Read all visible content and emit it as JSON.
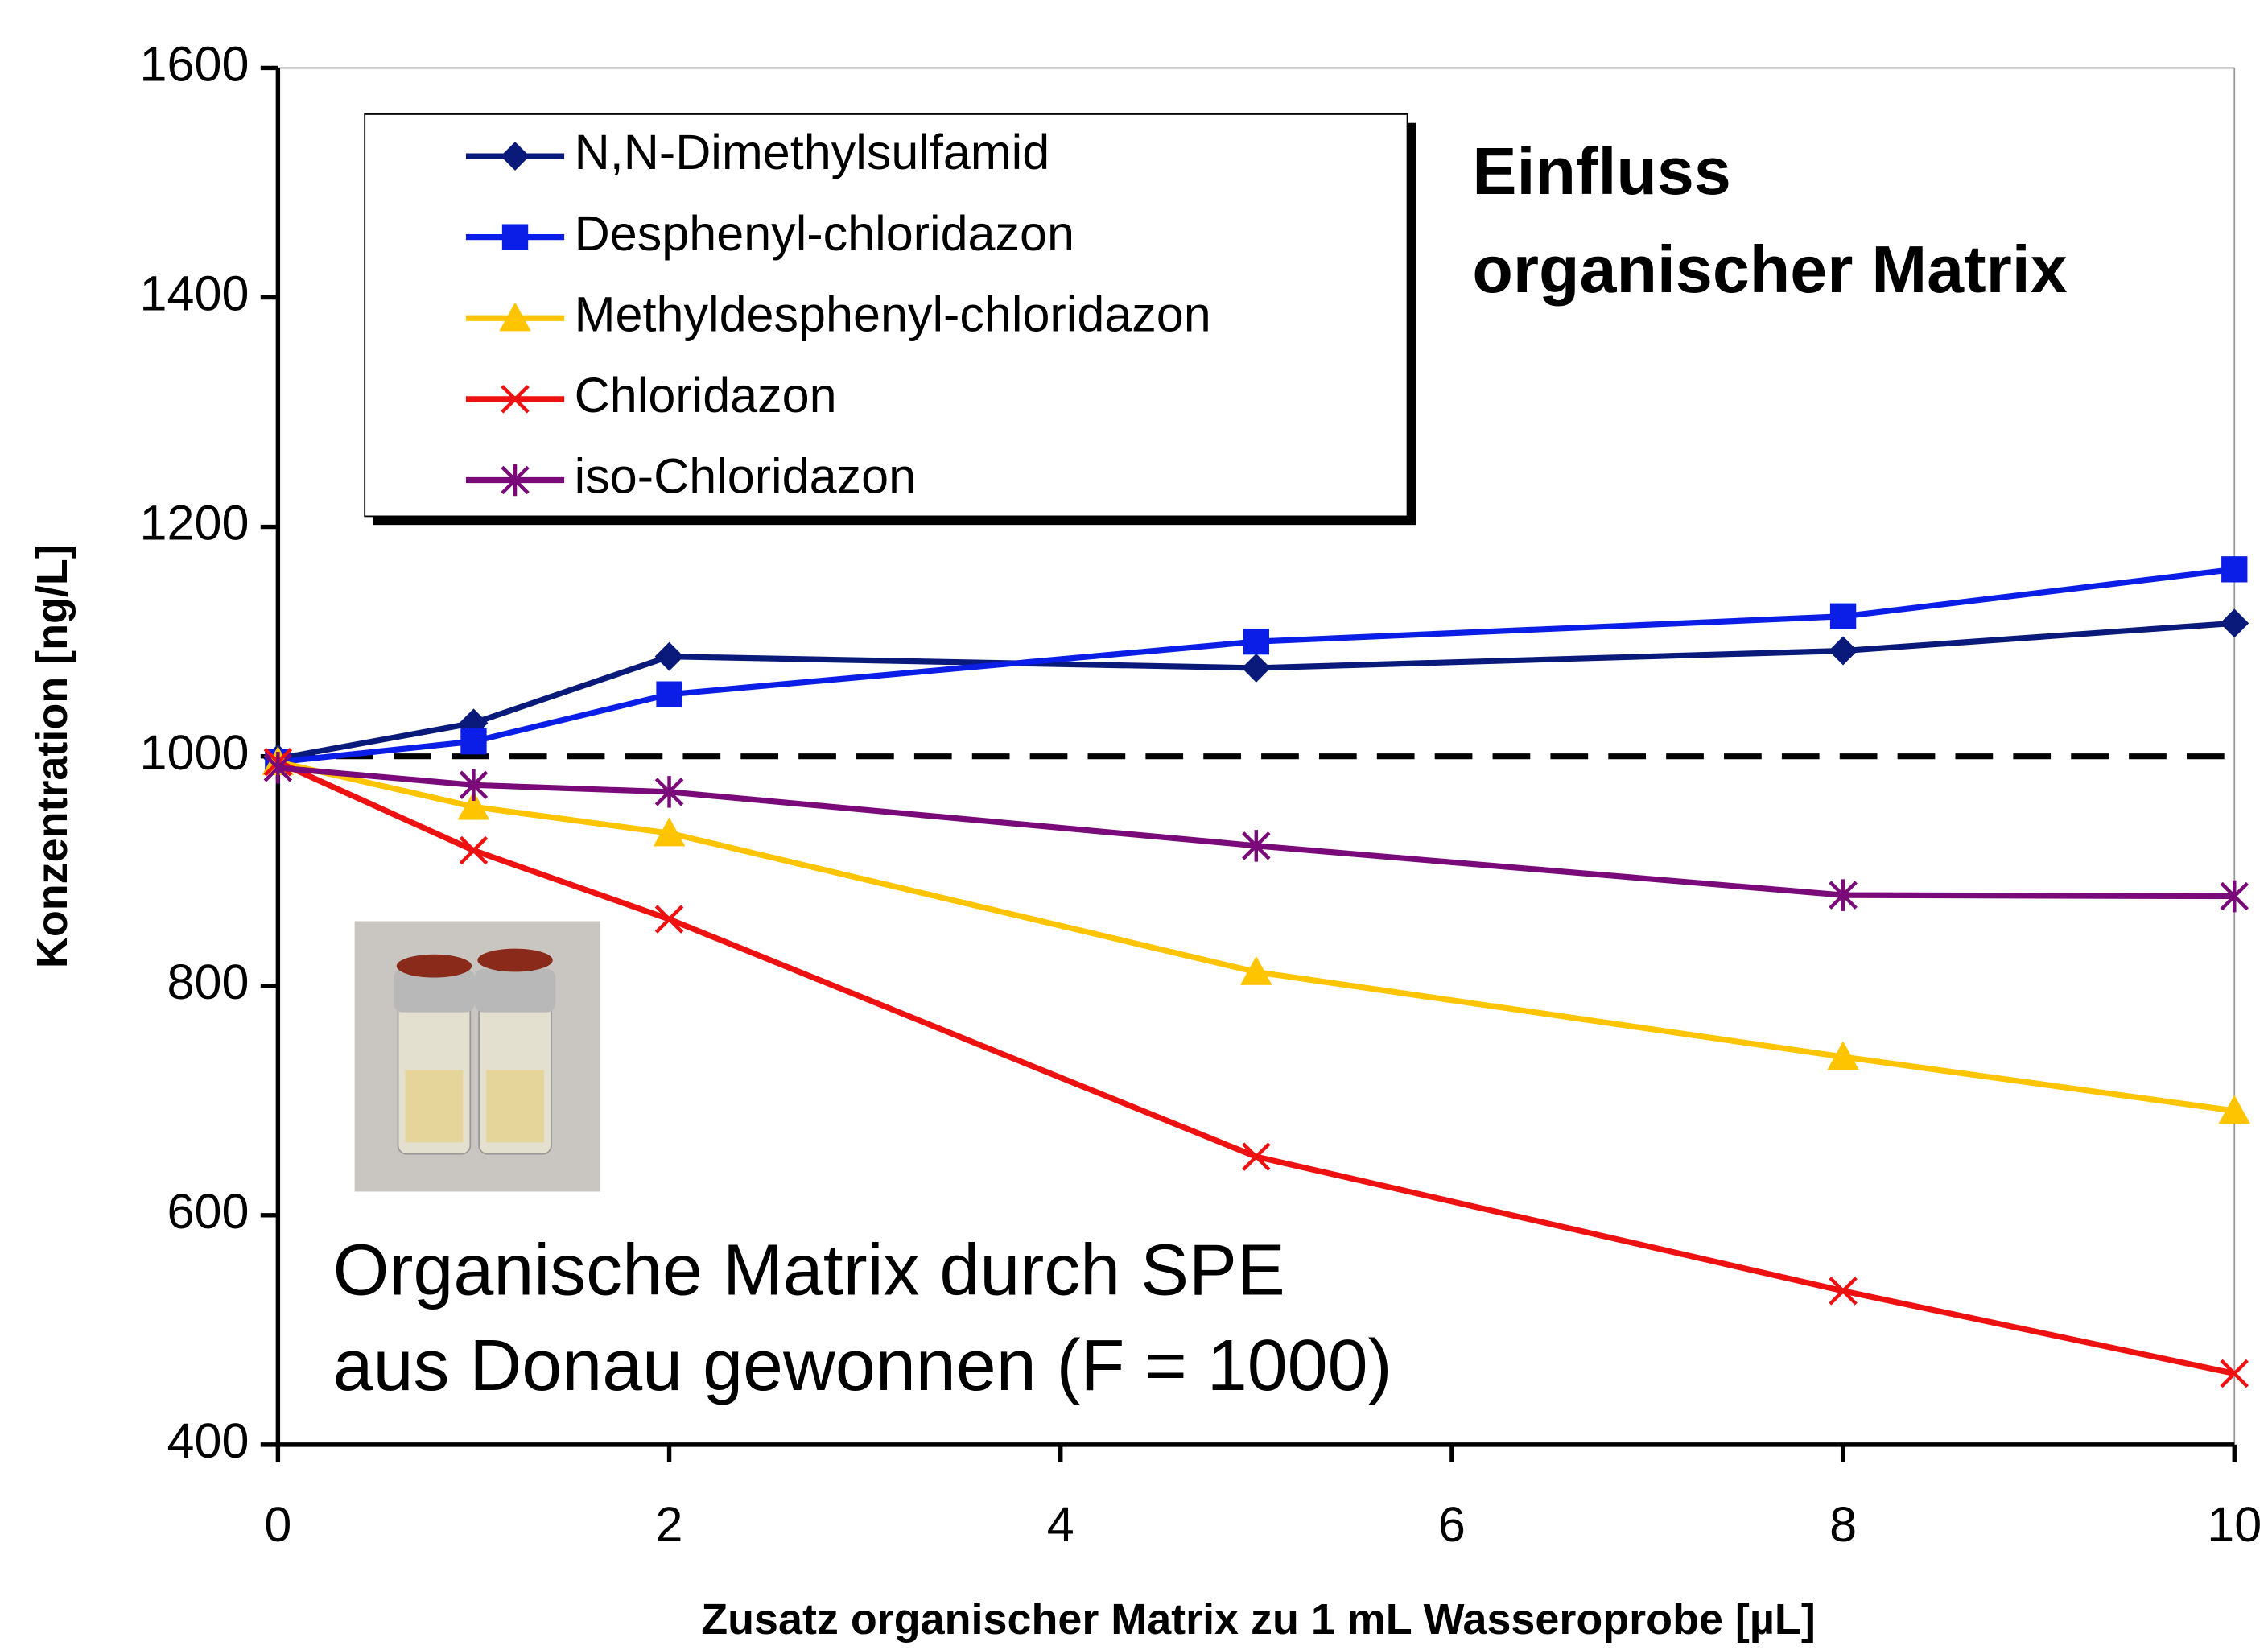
{
  "chart_data": {
    "type": "line",
    "xlabel": "Zusatz organischer Matrix zu 1 mL Wasseroprobe [µL]",
    "ylabel": "Konzentration [ng/L]",
    "x": [
      0,
      1,
      2,
      5,
      8,
      10
    ],
    "xlim": [
      0,
      10
    ],
    "xticks": [
      0,
      2,
      4,
      6,
      8,
      10
    ],
    "ylim": [
      400,
      1600
    ],
    "yticks": [
      400,
      600,
      800,
      1000,
      1200,
      1400,
      1600
    ],
    "reference_line": 1000,
    "legend": "upper left",
    "series": [
      {
        "name": "N,N-Dimethylsulfamid",
        "color": "#0a1a7a",
        "marker": "diamond",
        "values": [
          998,
          1029,
          1087,
          1077,
          1092,
          1116
        ]
      },
      {
        "name": "Desphenyl-chloridazon",
        "color": "#0a1ee8",
        "marker": "square",
        "values": [
          995,
          1013,
          1054,
          1100,
          1122,
          1163
        ]
      },
      {
        "name": "Methyldesphenyl-chloridazon",
        "color": "#ffc400",
        "marker": "triangle",
        "values": [
          995,
          956,
          933,
          812,
          738,
          691
        ]
      },
      {
        "name": "Chloridazon",
        "color": "#ee1111",
        "marker": "x",
        "values": [
          995,
          918,
          858,
          651,
          534,
          462
        ]
      },
      {
        "name": "iso-Chloridazon",
        "color": "#7a0a7a",
        "marker": "star",
        "values": [
          990,
          975,
          969,
          922,
          879,
          878
        ]
      }
    ],
    "annotations": [
      {
        "lines": [
          "Einfluss",
          "organischer Matrix"
        ]
      },
      {
        "lines": [
          "Organische Matrix durch SPE",
          "aus Donau gewonnen (F = 1000)"
        ]
      }
    ]
  }
}
